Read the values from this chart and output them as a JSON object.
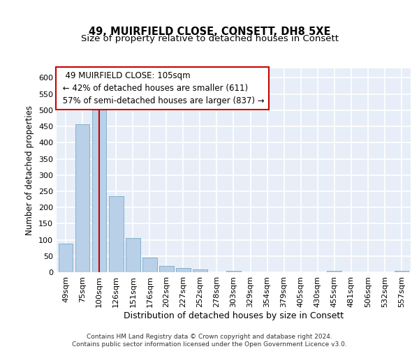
{
  "title_line1": "49, MUIRFIELD CLOSE, CONSETT, DH8 5XE",
  "title_line2": "Size of property relative to detached houses in Consett",
  "xlabel": "Distribution of detached houses by size in Consett",
  "ylabel": "Number of detached properties",
  "categories": [
    "49sqm",
    "75sqm",
    "100sqm",
    "126sqm",
    "151sqm",
    "176sqm",
    "202sqm",
    "227sqm",
    "252sqm",
    "278sqm",
    "303sqm",
    "329sqm",
    "354sqm",
    "379sqm",
    "405sqm",
    "430sqm",
    "455sqm",
    "481sqm",
    "506sqm",
    "532sqm",
    "557sqm"
  ],
  "values": [
    88,
    456,
    501,
    234,
    105,
    45,
    20,
    12,
    8,
    0,
    4,
    0,
    0,
    0,
    0,
    0,
    4,
    0,
    0,
    0,
    4
  ],
  "bar_color": "#b8d0e8",
  "bar_edge_color": "#7aaac8",
  "vline_x": 2,
  "vline_color": "#cc0000",
  "annotation_text": "  49 MUIRFIELD CLOSE: 105sqm  \n ← 42% of detached houses are smaller (611)\n 57% of semi-detached houses are larger (837) →",
  "annotation_box_color": "#ffffff",
  "annotation_box_edge": "#cc0000",
  "ylim": [
    0,
    630
  ],
  "yticks": [
    0,
    50,
    100,
    150,
    200,
    250,
    300,
    350,
    400,
    450,
    500,
    550,
    600
  ],
  "background_color": "#e8eef8",
  "grid_color": "#ffffff",
  "footer": "Contains HM Land Registry data © Crown copyright and database right 2024.\nContains public sector information licensed under the Open Government Licence v3.0.",
  "title_fontsize": 10.5,
  "subtitle_fontsize": 9.5,
  "tick_fontsize": 8,
  "xlabel_fontsize": 9,
  "ylabel_fontsize": 8.5,
  "annot_fontsize": 8.5,
  "footer_fontsize": 6.5
}
